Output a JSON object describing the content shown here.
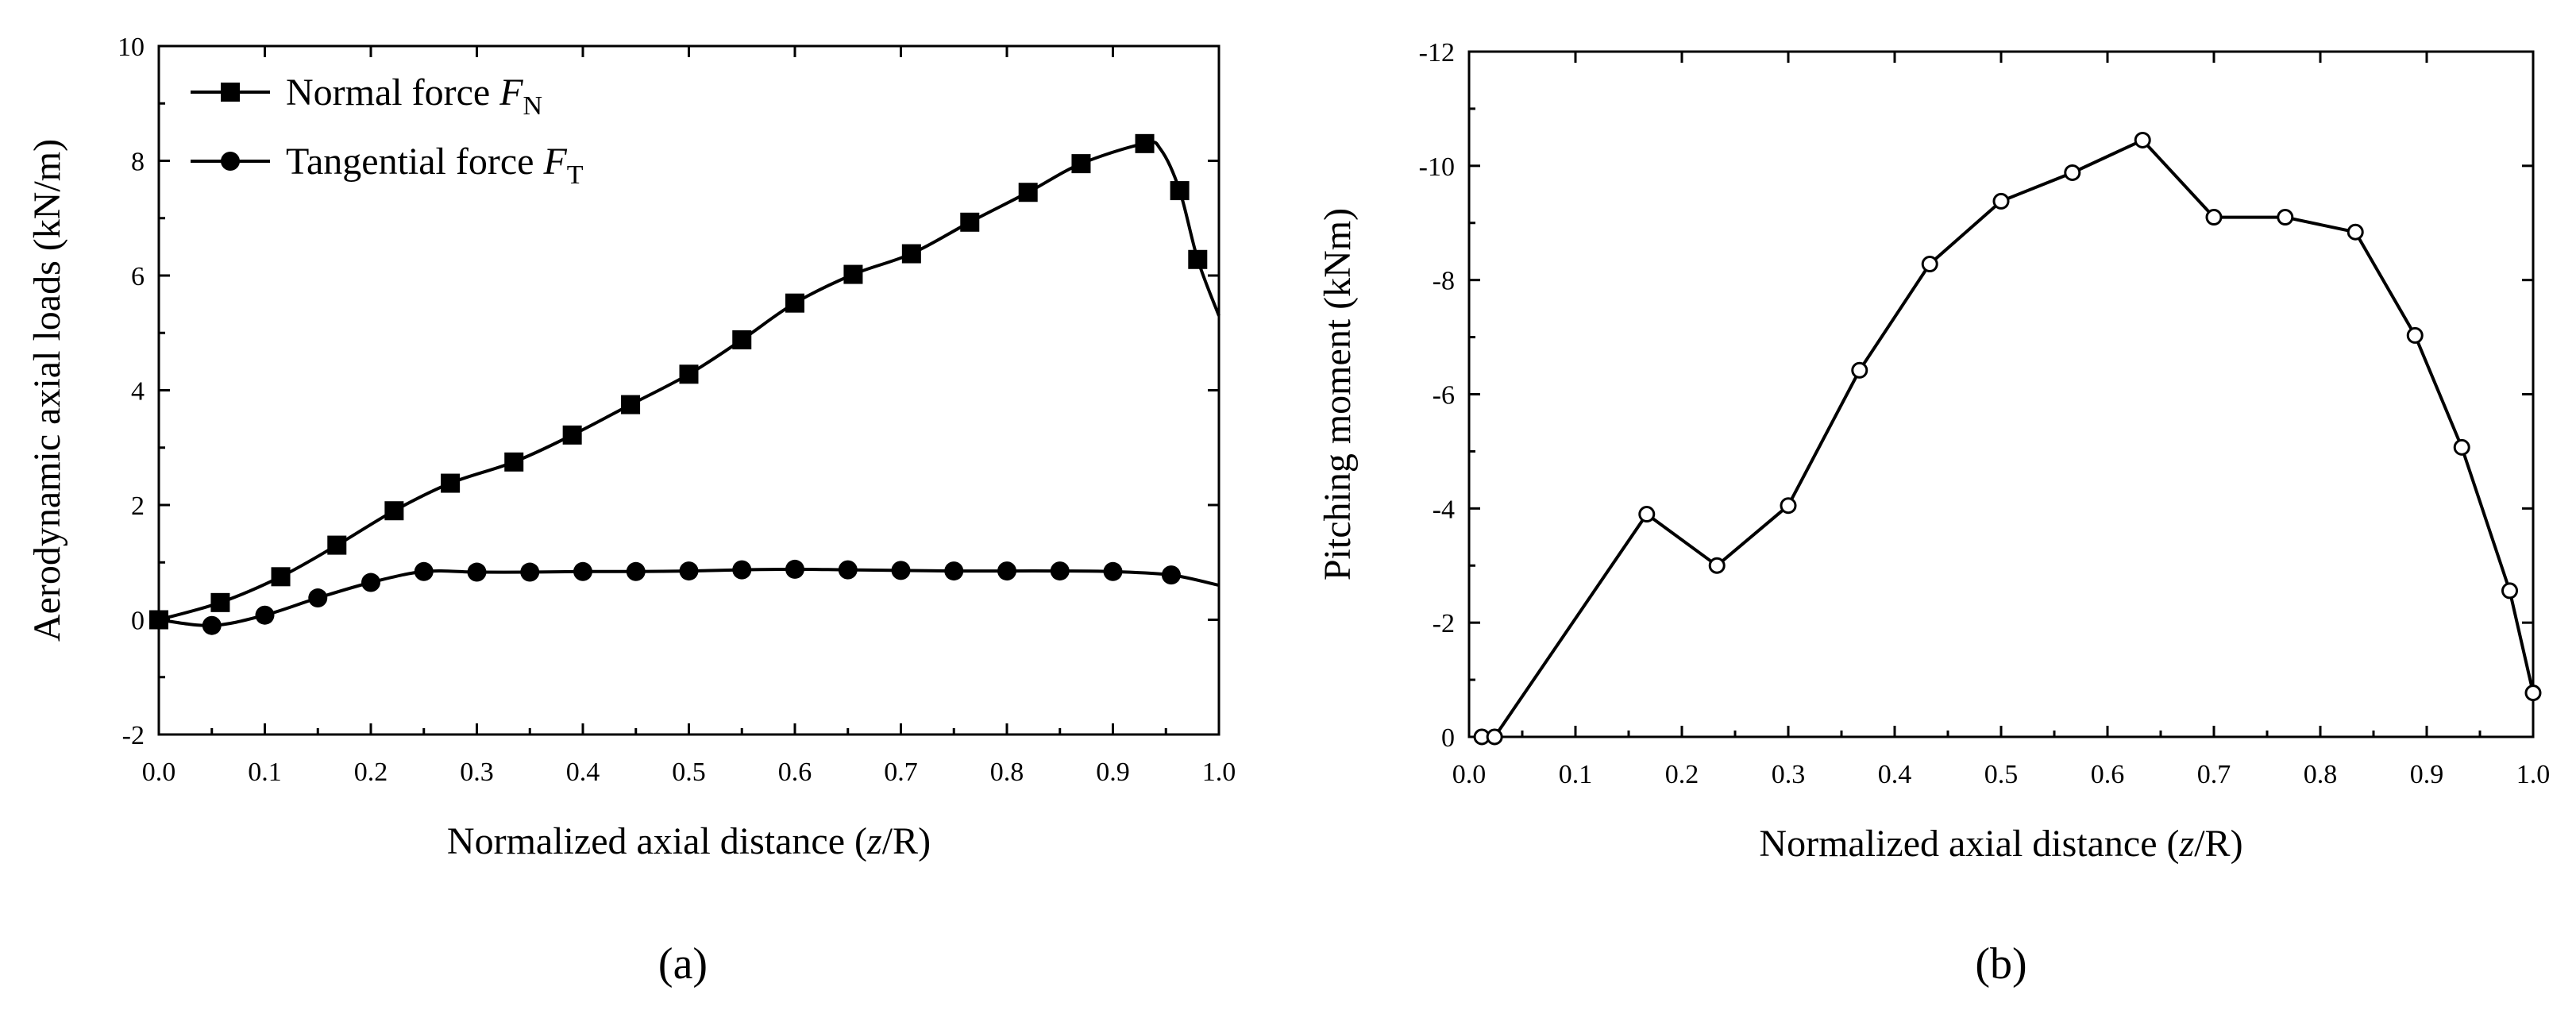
{
  "chart_data": [
    {
      "type": "line",
      "panel": "(a)",
      "xlabel": {
        "text": "Normalized axial distance (",
        "var": "z",
        "tail": "/R)"
      },
      "ylabel": "Aerodynamic axial loads (kN/m)",
      "xlim": [
        0.0,
        1.0
      ],
      "ylim": [
        -2,
        10
      ],
      "xticks": [
        0.0,
        0.1,
        0.2,
        0.3,
        0.4,
        0.5,
        0.6,
        0.7,
        0.8,
        0.9,
        1.0
      ],
      "yticks": [
        -2,
        0,
        2,
        4,
        6,
        8,
        10
      ],
      "legend_position": "top-left",
      "series": [
        {
          "name": "Normal force",
          "symbol": "F",
          "subscript": "N",
          "marker": "square",
          "points": [
            [
              0.0,
              0.0
            ],
            [
              0.058,
              0.3
            ],
            [
              0.115,
              0.75
            ],
            [
              0.168,
              1.3
            ],
            [
              0.222,
              1.9
            ],
            [
              0.275,
              2.38
            ],
            [
              0.335,
              2.75
            ],
            [
              0.39,
              3.22
            ],
            [
              0.445,
              3.75
            ],
            [
              0.5,
              4.28
            ],
            [
              0.55,
              4.88
            ],
            [
              0.6,
              5.52
            ],
            [
              0.655,
              6.02
            ],
            [
              0.71,
              6.38
            ],
            [
              0.765,
              6.93
            ],
            [
              0.82,
              7.45
            ],
            [
              0.87,
              7.95
            ],
            [
              0.93,
              8.3
            ],
            [
              0.963,
              7.48
            ],
            [
              0.98,
              6.28
            ]
          ],
          "curve": [
            [
              0.0,
              0.0
            ],
            [
              0.058,
              0.3
            ],
            [
              0.115,
              0.75
            ],
            [
              0.168,
              1.3
            ],
            [
              0.222,
              1.9
            ],
            [
              0.275,
              2.38
            ],
            [
              0.335,
              2.75
            ],
            [
              0.39,
              3.22
            ],
            [
              0.445,
              3.75
            ],
            [
              0.5,
              4.28
            ],
            [
              0.55,
              4.88
            ],
            [
              0.6,
              5.52
            ],
            [
              0.655,
              6.02
            ],
            [
              0.71,
              6.38
            ],
            [
              0.765,
              6.93
            ],
            [
              0.82,
              7.45
            ],
            [
              0.87,
              7.95
            ],
            [
              0.93,
              8.3
            ],
            [
              0.945,
              8.2
            ],
            [
              0.963,
              7.48
            ],
            [
              0.98,
              6.28
            ],
            [
              1.0,
              5.3
            ]
          ]
        },
        {
          "name": "Tangential force",
          "symbol": "F",
          "subscript": "T",
          "marker": "circle",
          "points": [
            [
              0.0,
              0.0
            ],
            [
              0.05,
              -0.1
            ],
            [
              0.1,
              0.08
            ],
            [
              0.15,
              0.38
            ],
            [
              0.2,
              0.65
            ],
            [
              0.25,
              0.84
            ],
            [
              0.3,
              0.83
            ],
            [
              0.35,
              0.83
            ],
            [
              0.4,
              0.84
            ],
            [
              0.45,
              0.84
            ],
            [
              0.5,
              0.85
            ],
            [
              0.55,
              0.87
            ],
            [
              0.6,
              0.88
            ],
            [
              0.65,
              0.87
            ],
            [
              0.7,
              0.86
            ],
            [
              0.75,
              0.85
            ],
            [
              0.8,
              0.85
            ],
            [
              0.85,
              0.85
            ],
            [
              0.9,
              0.84
            ],
            [
              0.955,
              0.78
            ]
          ],
          "curve": [
            [
              0.0,
              0.0
            ],
            [
              0.05,
              -0.1
            ],
            [
              0.1,
              0.08
            ],
            [
              0.15,
              0.38
            ],
            [
              0.2,
              0.65
            ],
            [
              0.25,
              0.84
            ],
            [
              0.3,
              0.83
            ],
            [
              0.35,
              0.83
            ],
            [
              0.4,
              0.84
            ],
            [
              0.45,
              0.84
            ],
            [
              0.5,
              0.85
            ],
            [
              0.55,
              0.87
            ],
            [
              0.6,
              0.88
            ],
            [
              0.65,
              0.87
            ],
            [
              0.7,
              0.86
            ],
            [
              0.75,
              0.85
            ],
            [
              0.8,
              0.85
            ],
            [
              0.85,
              0.85
            ],
            [
              0.9,
              0.84
            ],
            [
              0.955,
              0.78
            ],
            [
              1.0,
              0.6
            ]
          ]
        }
      ]
    },
    {
      "type": "line",
      "panel": "(b)",
      "xlabel": {
        "text": "Normalized axial distance (",
        "var": "z",
        "tail": "/R)"
      },
      "ylabel": "Pitching moment (kNm)",
      "xlim": [
        0.0,
        1.0
      ],
      "ylim": [
        0,
        -12
      ],
      "xticks": [
        0.0,
        0.1,
        0.2,
        0.3,
        0.4,
        0.5,
        0.6,
        0.7,
        0.8,
        0.9,
        1.0
      ],
      "yticks": [
        0,
        -2,
        -4,
        -6,
        -8,
        -10,
        -12
      ],
      "series": [
        {
          "name": "Pitching moment",
          "marker": "open-circle",
          "points": [
            [
              0.012,
              0.0
            ],
            [
              0.024,
              0.0
            ],
            [
              0.167,
              -3.9
            ],
            [
              0.233,
              -3.0
            ],
            [
              0.3,
              -4.05
            ],
            [
              0.367,
              -6.42
            ],
            [
              0.433,
              -8.28
            ],
            [
              0.5,
              -9.38
            ],
            [
              0.567,
              -9.88
            ],
            [
              0.633,
              -10.45
            ],
            [
              0.7,
              -9.1
            ],
            [
              0.767,
              -9.1
            ],
            [
              0.833,
              -8.84
            ],
            [
              0.889,
              -7.03
            ],
            [
              0.933,
              -5.07
            ],
            [
              0.978,
              -2.56
            ],
            [
              1.0,
              -0.77
            ]
          ]
        }
      ]
    }
  ]
}
